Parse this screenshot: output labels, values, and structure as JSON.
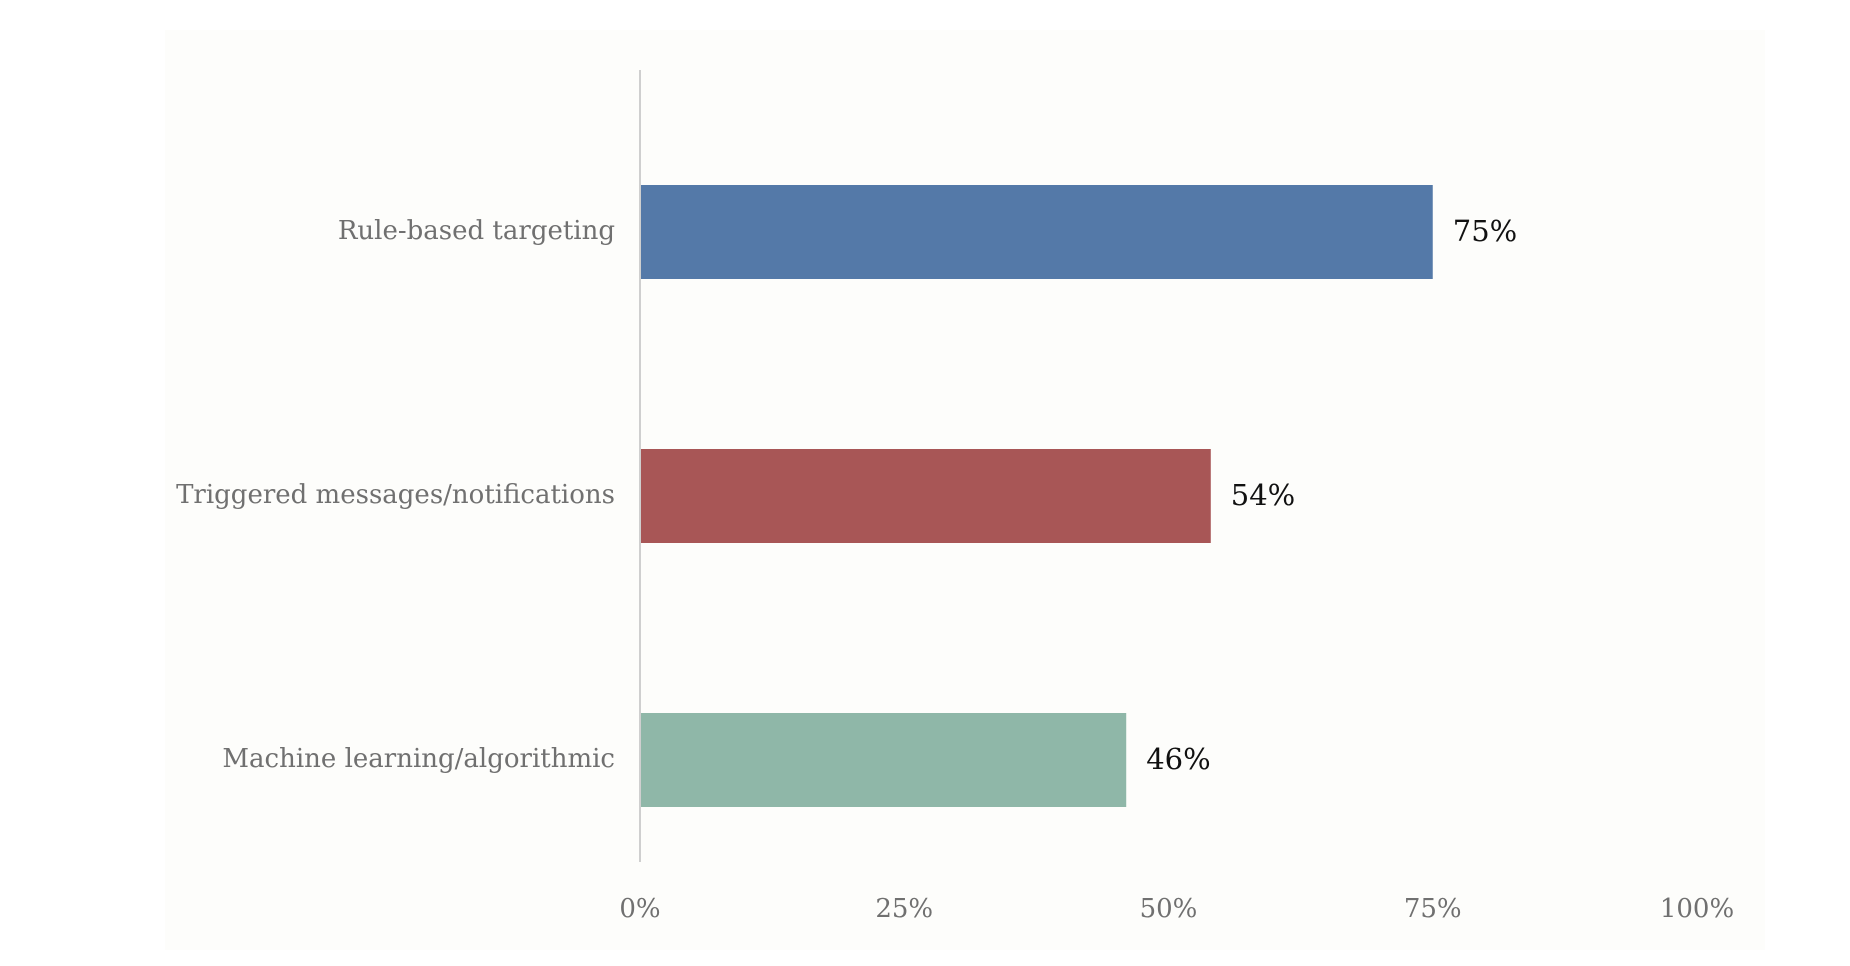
{
  "chart_data": {
    "type": "bar",
    "orientation": "horizontal",
    "categories": [
      "Rule-based targeting",
      "Triggered messages/notifications",
      "Machine learning/algorithmic"
    ],
    "values": [
      75,
      54,
      46
    ],
    "data_labels": [
      "75%",
      "54%",
      "46%"
    ],
    "colors": [
      "#5479a8",
      "#a85656",
      "#8fb7a8"
    ],
    "xlim": [
      0,
      100
    ],
    "x_ticks": [
      0,
      25,
      50,
      75,
      100
    ],
    "x_tick_labels": [
      "0%",
      "25%",
      "50%",
      "75%",
      "100%"
    ],
    "title": "",
    "xlabel": "",
    "ylabel": "",
    "grid": false,
    "legend": "none"
  }
}
